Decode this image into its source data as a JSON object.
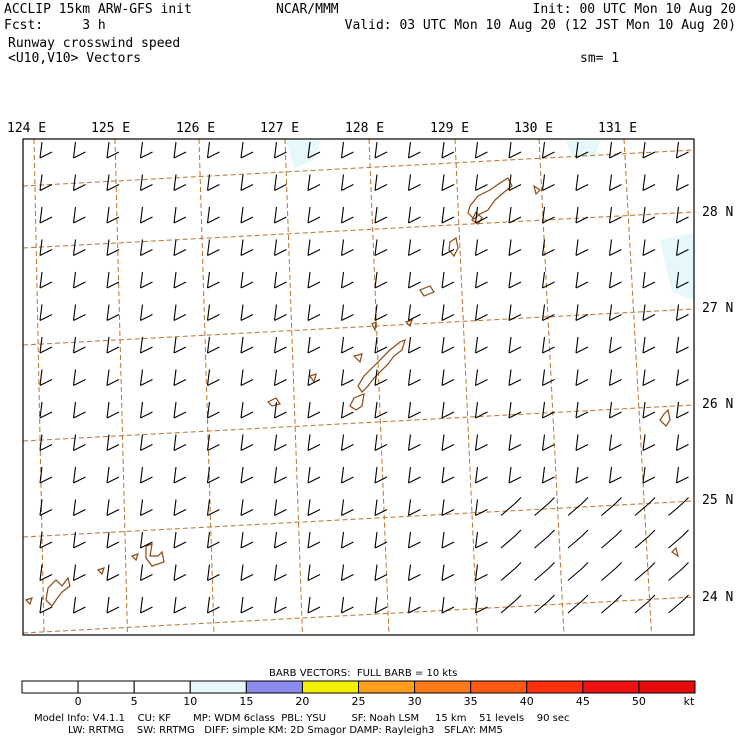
{
  "header": {
    "left_line1": "ACCLIP 15km ARW-GFS init",
    "left_line2": "Fcst:     3 h",
    "left_line3": "Runway crosswind speed",
    "left_line4": "<U10,V10> Vectors",
    "center_line1": "NCAR/MMM",
    "right_line1": "Init: 00 UTC Mon 10 Aug 20",
    "right_line2": "Valid: 03 UTC Mon 10 Aug 20 (12 JST Mon 10 Aug 20)",
    "right_line4": "sm= 1"
  },
  "map": {
    "lon_labels": [
      "124 E",
      "125 E",
      "126 E",
      "127 E",
      "128 E",
      "129 E",
      "130 E",
      "131 E"
    ],
    "lat_labels": [
      "28 N",
      "27 N",
      "26 N",
      "25 N",
      "24 N"
    ],
    "colors": {
      "graticule": "#b8732e",
      "coast": "#8b4a14",
      "barb": "#000000",
      "shade_10_15": "#e6f8fa"
    }
  },
  "colorbar": {
    "title": "BARB VECTORS:  FULL BARB = 10 kts",
    "tick_labels": [
      "0",
      "5",
      "10",
      "15",
      "20",
      "25",
      "30",
      "35",
      "40",
      "45",
      "50"
    ],
    "unit": "kt",
    "bin_colors": [
      "#ffffff",
      "#ffffff",
      "#ffffff",
      "#e6f8fa",
      "#8c8cf0",
      "#f5ef00",
      "#ff9e1a",
      "#ff7a18",
      "#ff5a14",
      "#ff3010",
      "#f01212",
      "#e60a0a"
    ]
  },
  "footer": {
    "line1": "Model Info: V4.1.1    CU: KF       MP: WDM 6class  PBL: YSU        SF: Noah LSM     15 km    51 levels    90 sec",
    "line2": "LW: RRTMG    SW: RRTMG   DIFF: simple KM: 2D Smagor DAMP: Rayleigh3   SFLAY: MM5"
  },
  "chart_data": {
    "type": "map-wind-barbs",
    "field": "Runway crosswind speed",
    "vectors": "<U10,V10>",
    "units": "kt",
    "lon_range": [
      124,
      131
    ],
    "lat_range": [
      24,
      28
    ],
    "barb_rows": 15,
    "barb_cols": 20,
    "predominant_barb": {
      "direction": "southwest",
      "speed_kt": 10
    },
    "colorbar_levels": [
      0,
      5,
      10,
      15,
      20,
      25,
      30,
      35,
      40,
      45,
      50
    ],
    "full_barb_kt": 10
  }
}
